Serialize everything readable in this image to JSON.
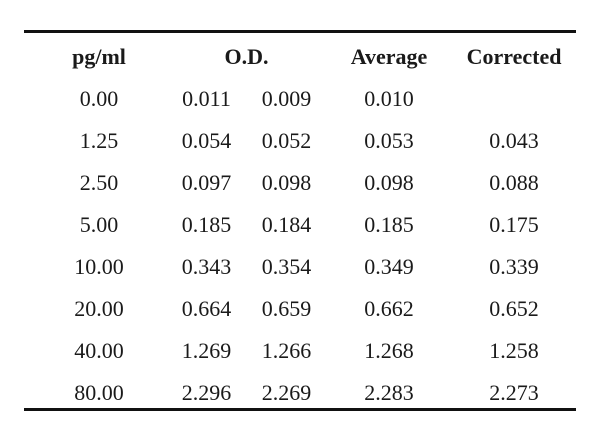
{
  "table": {
    "headers": {
      "pg": "pg/ml",
      "od": "O.D.",
      "average": "Average",
      "corrected": "Corrected"
    },
    "rows": [
      {
        "pg": "0.00",
        "od1": "0.011",
        "od2": "0.009",
        "average": "0.010",
        "corrected": ""
      },
      {
        "pg": "1.25",
        "od1": "0.054",
        "od2": "0.052",
        "average": "0.053",
        "corrected": "0.043"
      },
      {
        "pg": "2.50",
        "od1": "0.097",
        "od2": "0.098",
        "average": "0.098",
        "corrected": "0.088"
      },
      {
        "pg": "5.00",
        "od1": "0.185",
        "od2": "0.184",
        "average": "0.185",
        "corrected": "0.175"
      },
      {
        "pg": "10.00",
        "od1": "0.343",
        "od2": "0.354",
        "average": "0.349",
        "corrected": "0.339"
      },
      {
        "pg": "20.00",
        "od1": "0.664",
        "od2": "0.659",
        "average": "0.662",
        "corrected": "0.652"
      },
      {
        "pg": "40.00",
        "od1": "1.269",
        "od2": "1.266",
        "average": "1.268",
        "corrected": "1.258"
      },
      {
        "pg": "80.00",
        "od1": "2.296",
        "od2": "2.269",
        "average": "2.283",
        "corrected": "2.273"
      }
    ]
  }
}
